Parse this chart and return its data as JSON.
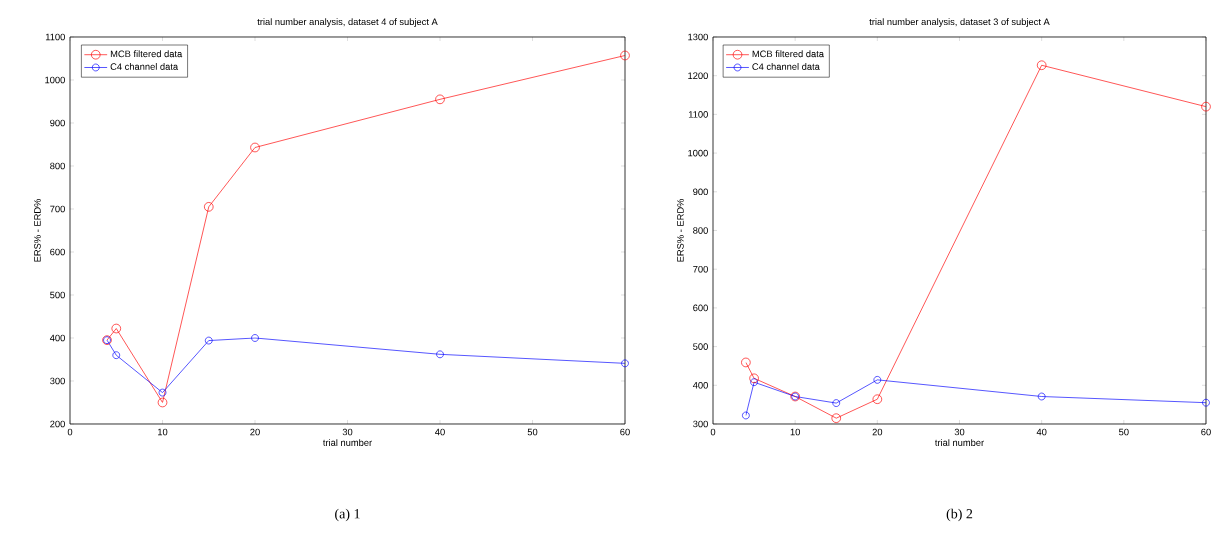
{
  "chart_data": [
    {
      "type": "line",
      "title": "trial number analysis, dataset 4 of subject A",
      "xlabel": "trial number",
      "ylabel": "ERS% - ERD%",
      "x": [
        4,
        5,
        10,
        15,
        20,
        40,
        60
      ],
      "series": [
        {
          "name": "MCB filtered data",
          "color": "#ff0000",
          "values": [
            395,
            422,
            250,
            705,
            843,
            955,
            1057
          ]
        },
        {
          "name": "C4 channel data",
          "color": "#0000ff",
          "values": [
            395,
            360,
            273,
            394,
            400,
            362,
            341
          ]
        }
      ],
      "xlim": [
        0,
        60
      ],
      "xticks": [
        0,
        10,
        20,
        30,
        40,
        50,
        60
      ],
      "ylim": [
        200,
        1100
      ],
      "yticks": [
        200,
        300,
        400,
        500,
        600,
        700,
        800,
        900,
        1000,
        1100
      ],
      "legend": "top left",
      "marker": "circle",
      "line_style": "solid",
      "annotations": [
        "(a) 1"
      ]
    },
    {
      "type": "line",
      "title": "trial number analysis, dataset 3 of subject A",
      "xlabel": "trial number",
      "ylabel": "ERS% - ERD%",
      "x": [
        4,
        5,
        10,
        15,
        20,
        40,
        60
      ],
      "series": [
        {
          "name": "MCB filtered data",
          "color": "#ff0000",
          "values": [
            459,
            418,
            371,
            315,
            364,
            1227,
            1120
          ]
        },
        {
          "name": "C4 channel data",
          "color": "#0000ff",
          "values": [
            322,
            408,
            371,
            354,
            414,
            371,
            355
          ]
        }
      ],
      "xlim": [
        0,
        60
      ],
      "xticks": [
        0,
        10,
        20,
        30,
        40,
        50,
        60
      ],
      "ylim": [
        300,
        1300
      ],
      "yticks": [
        300,
        400,
        500,
        600,
        700,
        800,
        900,
        1000,
        1100,
        1200,
        1300
      ],
      "legend": "top left",
      "marker": "circle",
      "line_style": "solid",
      "annotations": [
        "(b) 2"
      ]
    }
  ]
}
